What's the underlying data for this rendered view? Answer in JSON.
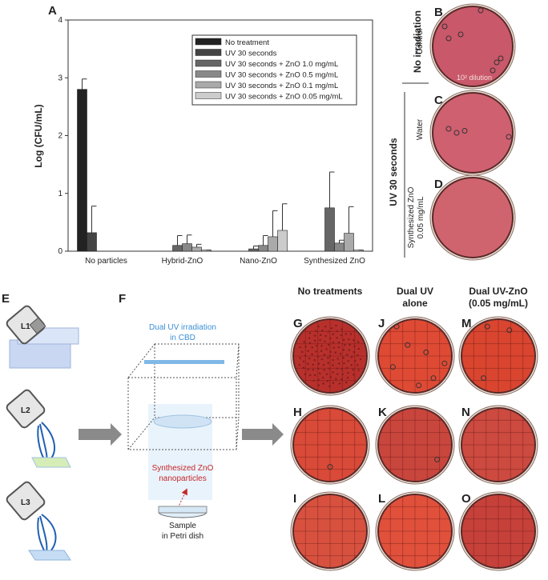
{
  "chart_data": {
    "type": "bar",
    "panel_label": "A",
    "ylabel": "Log (CFU/mL)",
    "categories": [
      "No particles",
      "Hybrid-ZnO",
      "Nano-ZnO",
      "Synthesized ZnO"
    ],
    "series": [
      {
        "name": "No treatment",
        "color": "#222222",
        "values": [
          2.8,
          null,
          null,
          null
        ],
        "errors": [
          0.18,
          null,
          null,
          null
        ]
      },
      {
        "name": "UV 30 seconds",
        "color": "#444444",
        "values": [
          0.32,
          null,
          null,
          null
        ],
        "errors": [
          0.46,
          null,
          null,
          null
        ]
      },
      {
        "name": "UV 30 seconds + ZnO 1.0 mg/mL",
        "color": "#666666",
        "values": [
          null,
          0.1,
          0.04,
          0.75
        ],
        "errors": [
          null,
          0.17,
          0.05,
          0.62
        ]
      },
      {
        "name": "UV 30 seconds + ZnO 0.5 mg/mL",
        "color": "#888888",
        "values": [
          null,
          0.13,
          0.1,
          0.14
        ],
        "errors": [
          null,
          0.15,
          0.17,
          0.05
        ]
      },
      {
        "name": "UV 30 seconds + ZnO 0.1 mg/mL",
        "color": "#aaaaaa",
        "values": [
          null,
          0.07,
          0.25,
          0.31
        ],
        "errors": [
          null,
          0.05,
          0.45,
          0.46
        ]
      },
      {
        "name": "UV 30 seconds + ZnO 0.05 mg/mL",
        "color": "#cccccc",
        "values": [
          null,
          0.02,
          0.36,
          0.02
        ],
        "errors": [
          null,
          0,
          0.46,
          0
        ]
      }
    ],
    "ylim": [
      0,
      4
    ],
    "yticks": [
      0,
      1,
      2,
      3,
      4
    ]
  },
  "panel_b_d": {
    "group_top": "No irradiation",
    "group_bottom": "UV 30 seconds",
    "b": {
      "label": "B",
      "side": "Control",
      "note": "10² dilution"
    },
    "c": {
      "label": "C",
      "side": "Water"
    },
    "d": {
      "label": "D",
      "side": [
        "Synthesized ZnO",
        "0.05 mg/mL"
      ]
    }
  },
  "panel_e": {
    "label": "E",
    "lamps": [
      "L1",
      "L2",
      "L3"
    ]
  },
  "panel_f": {
    "label": "F",
    "top_text": [
      "Dual UV irradiation",
      "in CBD"
    ],
    "np_text": [
      "Synthesized ZnO",
      "nanoparticles"
    ],
    "sample_text": [
      "Sample",
      "in Petri dish"
    ]
  },
  "panel_grid": {
    "headers": [
      [
        "No treatments"
      ],
      [
        "Dual UV",
        "alone"
      ],
      [
        "Dual UV-ZnO",
        "(0.05 mg/mL)"
      ]
    ],
    "labels": [
      [
        "G",
        "H",
        "I"
      ],
      [
        "J",
        "K",
        "L"
      ],
      [
        "M",
        "N",
        "O"
      ]
    ]
  }
}
